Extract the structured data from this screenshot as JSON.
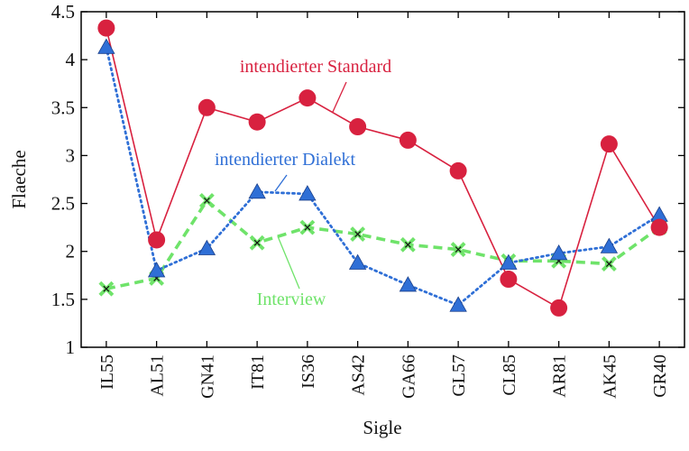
{
  "chart_data": {
    "type": "line",
    "xlabel": "Sigle",
    "ylabel": "Flaeche",
    "ylim": [
      1,
      4.5
    ],
    "yticks": [
      "1",
      "1.5",
      "2",
      "2.5",
      "3",
      "3.5",
      "4",
      "4.5"
    ],
    "categories": [
      "IL55",
      "AL51",
      "GN41",
      "IT81",
      "IS36",
      "AS42",
      "GA66",
      "GL57",
      "CL85",
      "AR81",
      "AK45",
      "GR40"
    ],
    "grid": false,
    "series": [
      {
        "name": "intendierter Standard",
        "color": "#d8213f",
        "marker": "circle",
        "line": "solid",
        "values": [
          4.33,
          2.12,
          3.5,
          3.35,
          3.6,
          3.3,
          3.16,
          2.84,
          1.71,
          1.41,
          3.12,
          2.25
        ]
      },
      {
        "name": "intendierter Dialekt",
        "color": "#2f6fd6",
        "marker": "triangle",
        "line": "dotted",
        "values": [
          4.13,
          1.8,
          2.03,
          2.62,
          2.6,
          1.88,
          1.65,
          1.44,
          1.88,
          1.98,
          2.05,
          2.38
        ]
      },
      {
        "name": "Interview",
        "color": "#6fe36a",
        "marker": "x",
        "line": "dashed",
        "values": [
          1.61,
          1.72,
          2.53,
          2.09,
          2.25,
          2.18,
          2.07,
          2.02,
          1.9,
          1.9,
          1.87,
          2.25
        ]
      }
    ],
    "annotations": [
      "intendierter Standard",
      "intendierter Dialekt",
      "Interview"
    ]
  }
}
